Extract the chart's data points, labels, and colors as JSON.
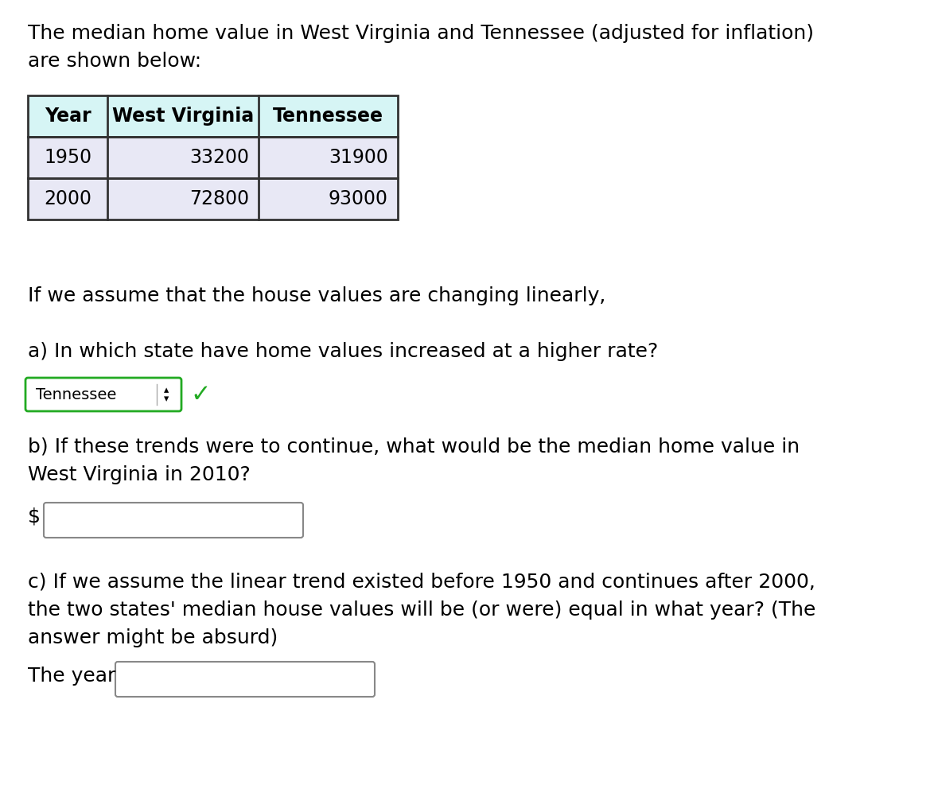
{
  "title_line1": "The median home value in West Virginia and Tennessee (adjusted for inflation)",
  "title_line2": "are shown below:",
  "table_headers": [
    "Year",
    "West Virginia",
    "Tennessee"
  ],
  "table_rows": [
    [
      "1950",
      "33200",
      "31900"
    ],
    [
      "2000",
      "72800",
      "93000"
    ]
  ],
  "header_bg": "#d6f5f5",
  "row1_bg": "#e8e8f5",
  "row2_bg": "#e8e8f5",
  "text_linear": "If we assume that the house values are changing linearly,",
  "question_a": "a) In which state have home values increased at a higher rate?",
  "answer_a": "Tennessee",
  "question_b_line1": "b) If these trends were to continue, what would be the median home value in",
  "question_b_line2": "West Virginia in 2010?",
  "dollar_label": "$",
  "question_c_line1": "c) If we assume the linear trend existed before 1950 and continues after 2000,",
  "question_c_line2": "the two states' median house values will be (or were) equal in what year? (The",
  "question_c_line3": "answer might be absurd)",
  "year_label": "The year",
  "background_color": "#ffffff",
  "font_size_main": 18,
  "font_size_table": 17
}
